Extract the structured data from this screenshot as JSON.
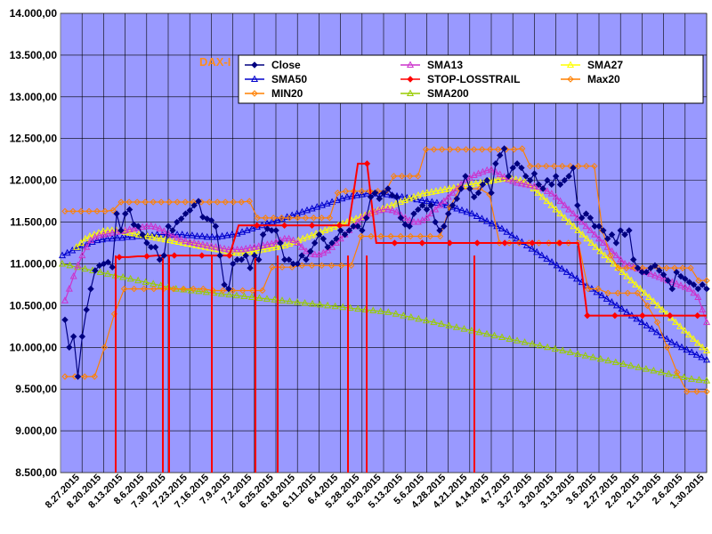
{
  "chart_data": {
    "type": "line",
    "title": "DAX-I",
    "title_color": "#ff8c1a",
    "plot_background": "#9999ff",
    "grid": true,
    "x_axis_reversed": true,
    "ylim": [
      8500,
      14000
    ],
    "yticks": [
      8500,
      9000,
      9500,
      10000,
      10500,
      11000,
      11500,
      12000,
      12500,
      13000,
      13500,
      14000
    ],
    "ytick_labels": [
      "8.500,00",
      "9.000,00",
      "9.500,00",
      "10.000,00",
      "10.500,00",
      "11.000,00",
      "11.500,00",
      "12.000,00",
      "12.500,00",
      "13.000,00",
      "13.500,00",
      "14.000,00"
    ],
    "x_tick_labels": [
      "8.27.2015",
      "8.20.2015",
      "8.13.2015",
      "8.6.2015",
      "7.30.2015",
      "7.23.2015",
      "7.16.2015",
      "7.9.2015",
      "7.2.2015",
      "6.25.2015",
      "6.18.2015",
      "6.11.2015",
      "6.4.2015",
      "5.28.2015",
      "5.20.2015",
      "5.13.2015",
      "5.6.2015",
      "4.28.2015",
      "4.21.2015",
      "4.14.2015",
      "4.7.2015",
      "3.27.2015",
      "3.20.2015",
      "3.13.2015",
      "3.6.2015",
      "2.27.2015",
      "2.20.2015",
      "2.13.2015",
      "2.6.2015",
      "1.30.2015"
    ],
    "legend_position": "top",
    "series": [
      {
        "name": "Close",
        "color": "#000080",
        "marker": "diamond",
        "values": [
          10330,
          10000,
          10130,
          9650,
          10130,
          10450,
          10700,
          10920,
          10980,
          11000,
          11020,
          10960,
          11600,
          11400,
          11600,
          11650,
          11470,
          11450,
          11350,
          11250,
          11200,
          11200,
          11050,
          11100,
          11450,
          11400,
          11500,
          11540,
          11600,
          11640,
          11700,
          11750,
          11560,
          11540,
          11520,
          11450,
          11100,
          10750,
          10700,
          11000,
          11050,
          11050,
          11100,
          10950,
          11100,
          11050,
          11350,
          11420,
          11400,
          11400,
          11250,
          11050,
          11050,
          11000,
          11000,
          11100,
          11050,
          11150,
          11250,
          11350,
          11300,
          11200,
          11250,
          11300,
          11400,
          11350,
          11400,
          11450,
          11450,
          11400,
          11550,
          11800,
          11850,
          11780,
          11850,
          11900,
          11820,
          11800,
          11550,
          11470,
          11450,
          11600,
          11650,
          11700,
          11650,
          11700,
          11500,
          11400,
          11450,
          11600,
          11700,
          11780,
          11900,
          12050,
          11900,
          11800,
          11850,
          11950,
          12000,
          11850,
          12200,
          12300,
          12380,
          12050,
          12150,
          12200,
          12150,
          12050,
          12000,
          12080,
          11950,
          11900,
          12000,
          11950,
          12050,
          11950,
          12000,
          12050,
          12150,
          11700,
          11550,
          11600,
          11550,
          11450,
          11450,
          11400,
          11300,
          11350,
          11250,
          11400,
          11350,
          11400,
          11050,
          10950,
          10900,
          10900,
          10950,
          10980,
          10920,
          10870,
          10800,
          10700,
          10900,
          10850,
          10820,
          10780,
          10750,
          10700,
          10750,
          10700
        ]
      },
      {
        "name": "SMA13",
        "color": "#cc33cc",
        "marker": "triangle",
        "values": [
          10560,
          10700,
          10850,
          10980,
          11100,
          11200,
          11280,
          11320,
          11340,
          11350,
          11360,
          11370,
          11380,
          11390,
          11400,
          11410,
          11420,
          11430,
          11440,
          11450,
          11450,
          11440,
          11420,
          11390,
          11360,
          11340,
          11310,
          11290,
          11270,
          11260,
          11250,
          11240,
          11230,
          11220,
          11210,
          11200,
          11190,
          11180,
          11170,
          11170,
          11170,
          11170,
          11180,
          11190,
          11200,
          11210,
          11220,
          11230,
          11240,
          11260,
          11280,
          11300,
          11300,
          11280,
          11250,
          11200,
          11150,
          11120,
          11110,
          11110,
          11130,
          11160,
          11200,
          11250,
          11300,
          11350,
          11400,
          11450,
          11500,
          11550,
          11580,
          11600,
          11620,
          11640,
          11650,
          11650,
          11640,
          11620,
          11580,
          11550,
          11520,
          11500,
          11500,
          11520,
          11550,
          11600,
          11650,
          11700,
          11750,
          11800,
          11850,
          11900,
          11950,
          12000,
          12030,
          12060,
          12080,
          12100,
          12120,
          12130,
          12100,
          12070,
          12040,
          12010,
          11990,
          11970,
          11960,
          11950,
          11940,
          11930,
          11920,
          11900,
          11870,
          11840,
          11800,
          11750,
          11700,
          11650,
          11600,
          11550,
          11500,
          11450,
          11400,
          11350,
          11300,
          11250,
          11200,
          11150,
          11100,
          11050,
          11000,
          10980,
          10960,
          10940,
          10920,
          10900,
          10880,
          10860,
          10840,
          10820,
          10800,
          10780,
          10760,
          10740,
          10720,
          10700,
          10650,
          10600,
          10450,
          10300
        ]
      },
      {
        "name": "SMA27",
        "color": "#ffff00",
        "marker": "triangle",
        "values": [
          11200,
          11250,
          11300,
          11330,
          11350,
          11370,
          11390,
          11400,
          11400,
          11400,
          11390,
          11380,
          11370,
          11360,
          11350,
          11340,
          11330,
          11320,
          11310,
          11300,
          11290,
          11280,
          11270,
          11260,
          11250,
          11240,
          11230,
          11220,
          11210,
          11200,
          11190,
          11180,
          11170,
          11160,
          11150,
          11140,
          11130,
          11130,
          11130,
          11140,
          11150,
          11160,
          11170,
          11180,
          11190,
          11200,
          11210,
          11220,
          11240,
          11260,
          11280,
          11300,
          11320,
          11340,
          11360,
          11380,
          11400,
          11420,
          11440,
          11460,
          11480,
          11500,
          11520,
          11540,
          11560,
          11580,
          11600,
          11620,
          11640,
          11660,
          11680,
          11700,
          11720,
          11740,
          11760,
          11780,
          11800,
          11820,
          11840,
          11850,
          11860,
          11870,
          11880,
          11890,
          11900,
          11910,
          11920,
          11930,
          11940,
          11950,
          11960,
          11970,
          11980,
          11990,
          12000,
          12010,
          12020,
          12020,
          12020,
          12010,
          12000,
          11980,
          11950,
          11900,
          11850,
          11800,
          11750,
          11700,
          11650,
          11600,
          11550,
          11500,
          11450,
          11400,
          11350,
          11300,
          11250,
          11200,
          11150,
          11100,
          11050,
          11000,
          10950,
          10900,
          10850,
          10800,
          10750,
          10700,
          10650,
          10600,
          10550,
          10500,
          10450,
          10400,
          10350,
          10300,
          10250,
          10200,
          10150,
          10100,
          10050,
          10000,
          9960
        ]
      },
      {
        "name": "SMA50",
        "color": "#0000cc",
        "marker": "triangle",
        "values": [
          11100,
          11130,
          11160,
          11190,
          11220,
          11240,
          11260,
          11280,
          11290,
          11300,
          11300,
          11310,
          11310,
          11320,
          11320,
          11330,
          11330,
          11340,
          11340,
          11350,
          11350,
          11350,
          11350,
          11350,
          11350,
          11340,
          11340,
          11330,
          11330,
          11320,
          11320,
          11320,
          11330,
          11340,
          11350,
          11360,
          11380,
          11400,
          11420,
          11440,
          11460,
          11480,
          11500,
          11520,
          11540,
          11560,
          11580,
          11600,
          11620,
          11640,
          11660,
          11680,
          11700,
          11720,
          11740,
          11760,
          11780,
          11800,
          11810,
          11820,
          11830,
          11840,
          11840,
          11840,
          11840,
          11830,
          11820,
          11810,
          11800,
          11790,
          11780,
          11770,
          11760,
          11750,
          11740,
          11730,
          11720,
          11700,
          11680,
          11660,
          11640,
          11620,
          11600,
          11570,
          11540,
          11510,
          11480,
          11450,
          11420,
          11380,
          11340,
          11300,
          11260,
          11220,
          11180,
          11140,
          11100,
          11060,
          11020,
          10980,
          10940,
          10900,
          10860,
          10820,
          10780,
          10740,
          10700,
          10660,
          10620,
          10580,
          10540,
          10500,
          10460,
          10420,
          10380,
          10340,
          10300,
          10260,
          10220,
          10180,
          10140,
          10100,
          10060,
          10030,
          10000,
          9970,
          9940,
          9910,
          9880,
          9850
        ]
      },
      {
        "name": "STOP-LOSSTRAIL",
        "color": "#ff0000",
        "marker": "diamond",
        "values": [
          11080,
          11080,
          11090,
          11090,
          11100,
          11100,
          11100,
          11100,
          11100,
          11100,
          11100,
          11100,
          11100,
          11460,
          11460,
          11460,
          11460,
          11460,
          11460,
          11460,
          11460,
          11460,
          11460,
          11460,
          11460,
          11460,
          12200,
          12200,
          11250,
          11250,
          11250,
          11250,
          11250,
          11250,
          11250,
          11250,
          11250,
          11250,
          11250,
          11250,
          11250,
          11250,
          11250,
          11250,
          11250,
          11250,
          11250,
          11250,
          11250,
          11250,
          11250,
          10380,
          10380,
          10380,
          10380,
          10380,
          10380,
          10380,
          10380,
          10380,
          10380,
          10380,
          10380,
          10380,
          10380
        ]
      },
      {
        "name": "Max20",
        "color": "#ff8000",
        "marker": "diamond",
        "values": [
          11630,
          11630,
          11630,
          11630,
          11630,
          11630,
          11640,
          11740,
          11740,
          11740,
          11740,
          11740,
          11740,
          11740,
          11740,
          11740,
          11740,
          11740,
          11740,
          11740,
          11740,
          11740,
          11740,
          11750,
          11550,
          11550,
          11550,
          11550,
          11550,
          11550,
          11550,
          11550,
          11550,
          11550,
          11850,
          11870,
          11870,
          11870,
          11870,
          11870,
          11870,
          12050,
          12050,
          12050,
          12050,
          12370,
          12370,
          12370,
          12370,
          12370,
          12370,
          12370,
          12370,
          12370,
          12370,
          12370,
          12370,
          12380,
          12170,
          12170,
          12170,
          12170,
          12170,
          12170,
          12170,
          12170,
          12170,
          11400,
          11100,
          10950,
          10950,
          10950,
          10950,
          10950,
          10950,
          10950,
          10950,
          10950,
          10950,
          10800,
          10800
        ]
      },
      {
        "name": "MIN20",
        "color": "#ff8000",
        "marker": "diamond",
        "values": [
          9650,
          9650,
          9650,
          9650,
          10000,
          10400,
          10700,
          10700,
          10700,
          10700,
          10700,
          10700,
          10700,
          10700,
          10700,
          10680,
          10680,
          10680,
          10680,
          10680,
          10680,
          10960,
          10960,
          10960,
          10980,
          10980,
          10980,
          10980,
          10980,
          10980,
          11330,
          11330,
          11330,
          11330,
          11330,
          11330,
          11330,
          11330,
          11330,
          11680,
          11900,
          11900,
          11900,
          11830,
          11250,
          11250,
          11250,
          11250,
          11250,
          11250,
          11250,
          11250,
          11250,
          10700,
          10700,
          10650,
          10650,
          10650,
          10650,
          10500,
          10300,
          10000,
          9700,
          9470,
          9470,
          9470
        ]
      },
      {
        "name": "SMA200",
        "color": "#99cc00",
        "marker": "triangle",
        "values": [
          11000,
          10980,
          10960,
          10940,
          10920,
          10900,
          10880,
          10860,
          10840,
          10820,
          10800,
          10780,
          10760,
          10740,
          10720,
          10700,
          10690,
          10680,
          10670,
          10660,
          10650,
          10640,
          10630,
          10620,
          10610,
          10600,
          10590,
          10580,
          10570,
          10560,
          10550,
          10540,
          10530,
          10520,
          10510,
          10500,
          10490,
          10480,
          10470,
          10460,
          10450,
          10440,
          10430,
          10420,
          10400,
          10380,
          10360,
          10340,
          10320,
          10300,
          10280,
          10260,
          10240,
          10220,
          10200,
          10180,
          10160,
          10140,
          10120,
          10100,
          10080,
          10060,
          10040,
          10020,
          10000,
          9980,
          9960,
          9940,
          9920,
          9900,
          9880,
          9860,
          9840,
          9820,
          9800,
          9780,
          9760,
          9740,
          9720,
          9700,
          9680,
          9660,
          9640,
          9620,
          9610,
          9600
        ]
      }
    ]
  }
}
